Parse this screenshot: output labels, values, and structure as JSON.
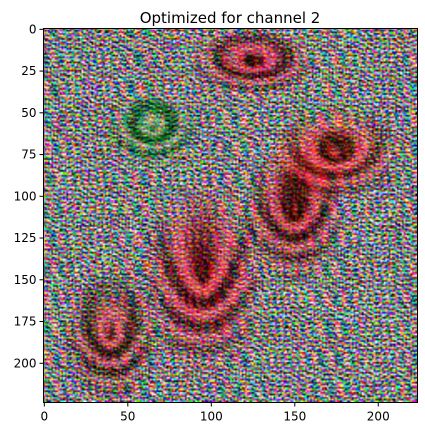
{
  "chart_data": {
    "type": "heatmap",
    "title": "Optimized for channel 2",
    "xlabel": "",
    "ylabel": "",
    "image_size": [
      224,
      224
    ],
    "xlim": [
      0,
      224
    ],
    "ylim": [
      224,
      0
    ],
    "x_ticks": [
      0,
      50,
      100,
      150,
      200
    ],
    "y_ticks": [
      0,
      25,
      50,
      75,
      100,
      125,
      150,
      175,
      200
    ],
    "y_inverted": true,
    "grid": false,
    "content": "noisy RGB feature visualization",
    "colors": {
      "axis_color": "#000000",
      "background": "#ffffff",
      "palette": [
        "#ff2020",
        "#20ff40",
        "#3040ff",
        "#ffffff",
        "#000000",
        "#a02030",
        "#40c0ff",
        "#ff40ff",
        "#ffff40",
        "#30a040"
      ]
    }
  }
}
